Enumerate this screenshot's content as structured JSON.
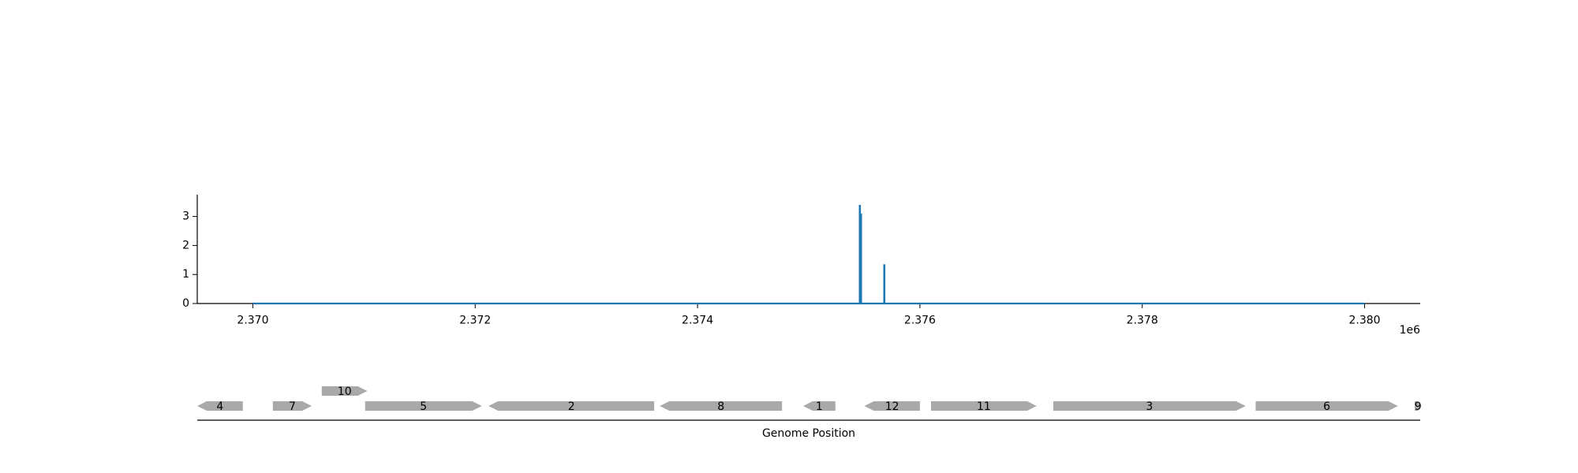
{
  "chart_data": {
    "type": "line",
    "xlabel": "Genome Position",
    "ylabel": "",
    "x_offset_label": "1e6",
    "xlim": [
      2369500,
      2380500
    ],
    "ylim": [
      0,
      3.75
    ],
    "x_ticks": [
      2370000,
      2372000,
      2374000,
      2376000,
      2378000,
      2380000
    ],
    "x_tick_labels": [
      "2.370",
      "2.372",
      "2.374",
      "2.376",
      "2.378",
      "2.380"
    ],
    "y_ticks": [
      0,
      1,
      2,
      3
    ],
    "y_tick_labels": [
      "0",
      "1",
      "2",
      "3"
    ],
    "baseline": {
      "x_start": 2370000,
      "x_end": 2380000,
      "y": 0
    },
    "series": [
      {
        "color": "#1f77b4",
        "points": [
          {
            "x": 2375460,
            "y": 3.4
          },
          {
            "x": 2375470,
            "y": 3.1
          },
          {
            "x": 2375680,
            "y": 1.35
          }
        ]
      }
    ],
    "genes": [
      {
        "label": "4",
        "start": 2369500,
        "end": 2369910,
        "strand": "-",
        "row": 0
      },
      {
        "label": "7",
        "start": 2370180,
        "end": 2370530,
        "strand": "+",
        "row": 0
      },
      {
        "label": "10",
        "start": 2370620,
        "end": 2371030,
        "strand": "+",
        "row": 1
      },
      {
        "label": "5",
        "start": 2371010,
        "end": 2372060,
        "strand": "+",
        "row": 0
      },
      {
        "label": "2",
        "start": 2372120,
        "end": 2373610,
        "strand": "-",
        "row": 0
      },
      {
        "label": "8",
        "start": 2373660,
        "end": 2374760,
        "strand": "-",
        "row": 0
      },
      {
        "label": "1",
        "start": 2374950,
        "end": 2375240,
        "strand": "-",
        "row": 0
      },
      {
        "label": "12",
        "start": 2375500,
        "end": 2376000,
        "strand": "-",
        "row": 0
      },
      {
        "label": "11",
        "start": 2376100,
        "end": 2377050,
        "strand": "+",
        "row": 0
      },
      {
        "label": "3",
        "start": 2377200,
        "end": 2378930,
        "strand": "+",
        "row": 0
      },
      {
        "label": "6",
        "start": 2379020,
        "end": 2380300,
        "strand": "+",
        "row": 0
      },
      {
        "label": "9",
        "start": 2380450,
        "end": 2380510,
        "strand": "+",
        "row": 0
      }
    ]
  }
}
